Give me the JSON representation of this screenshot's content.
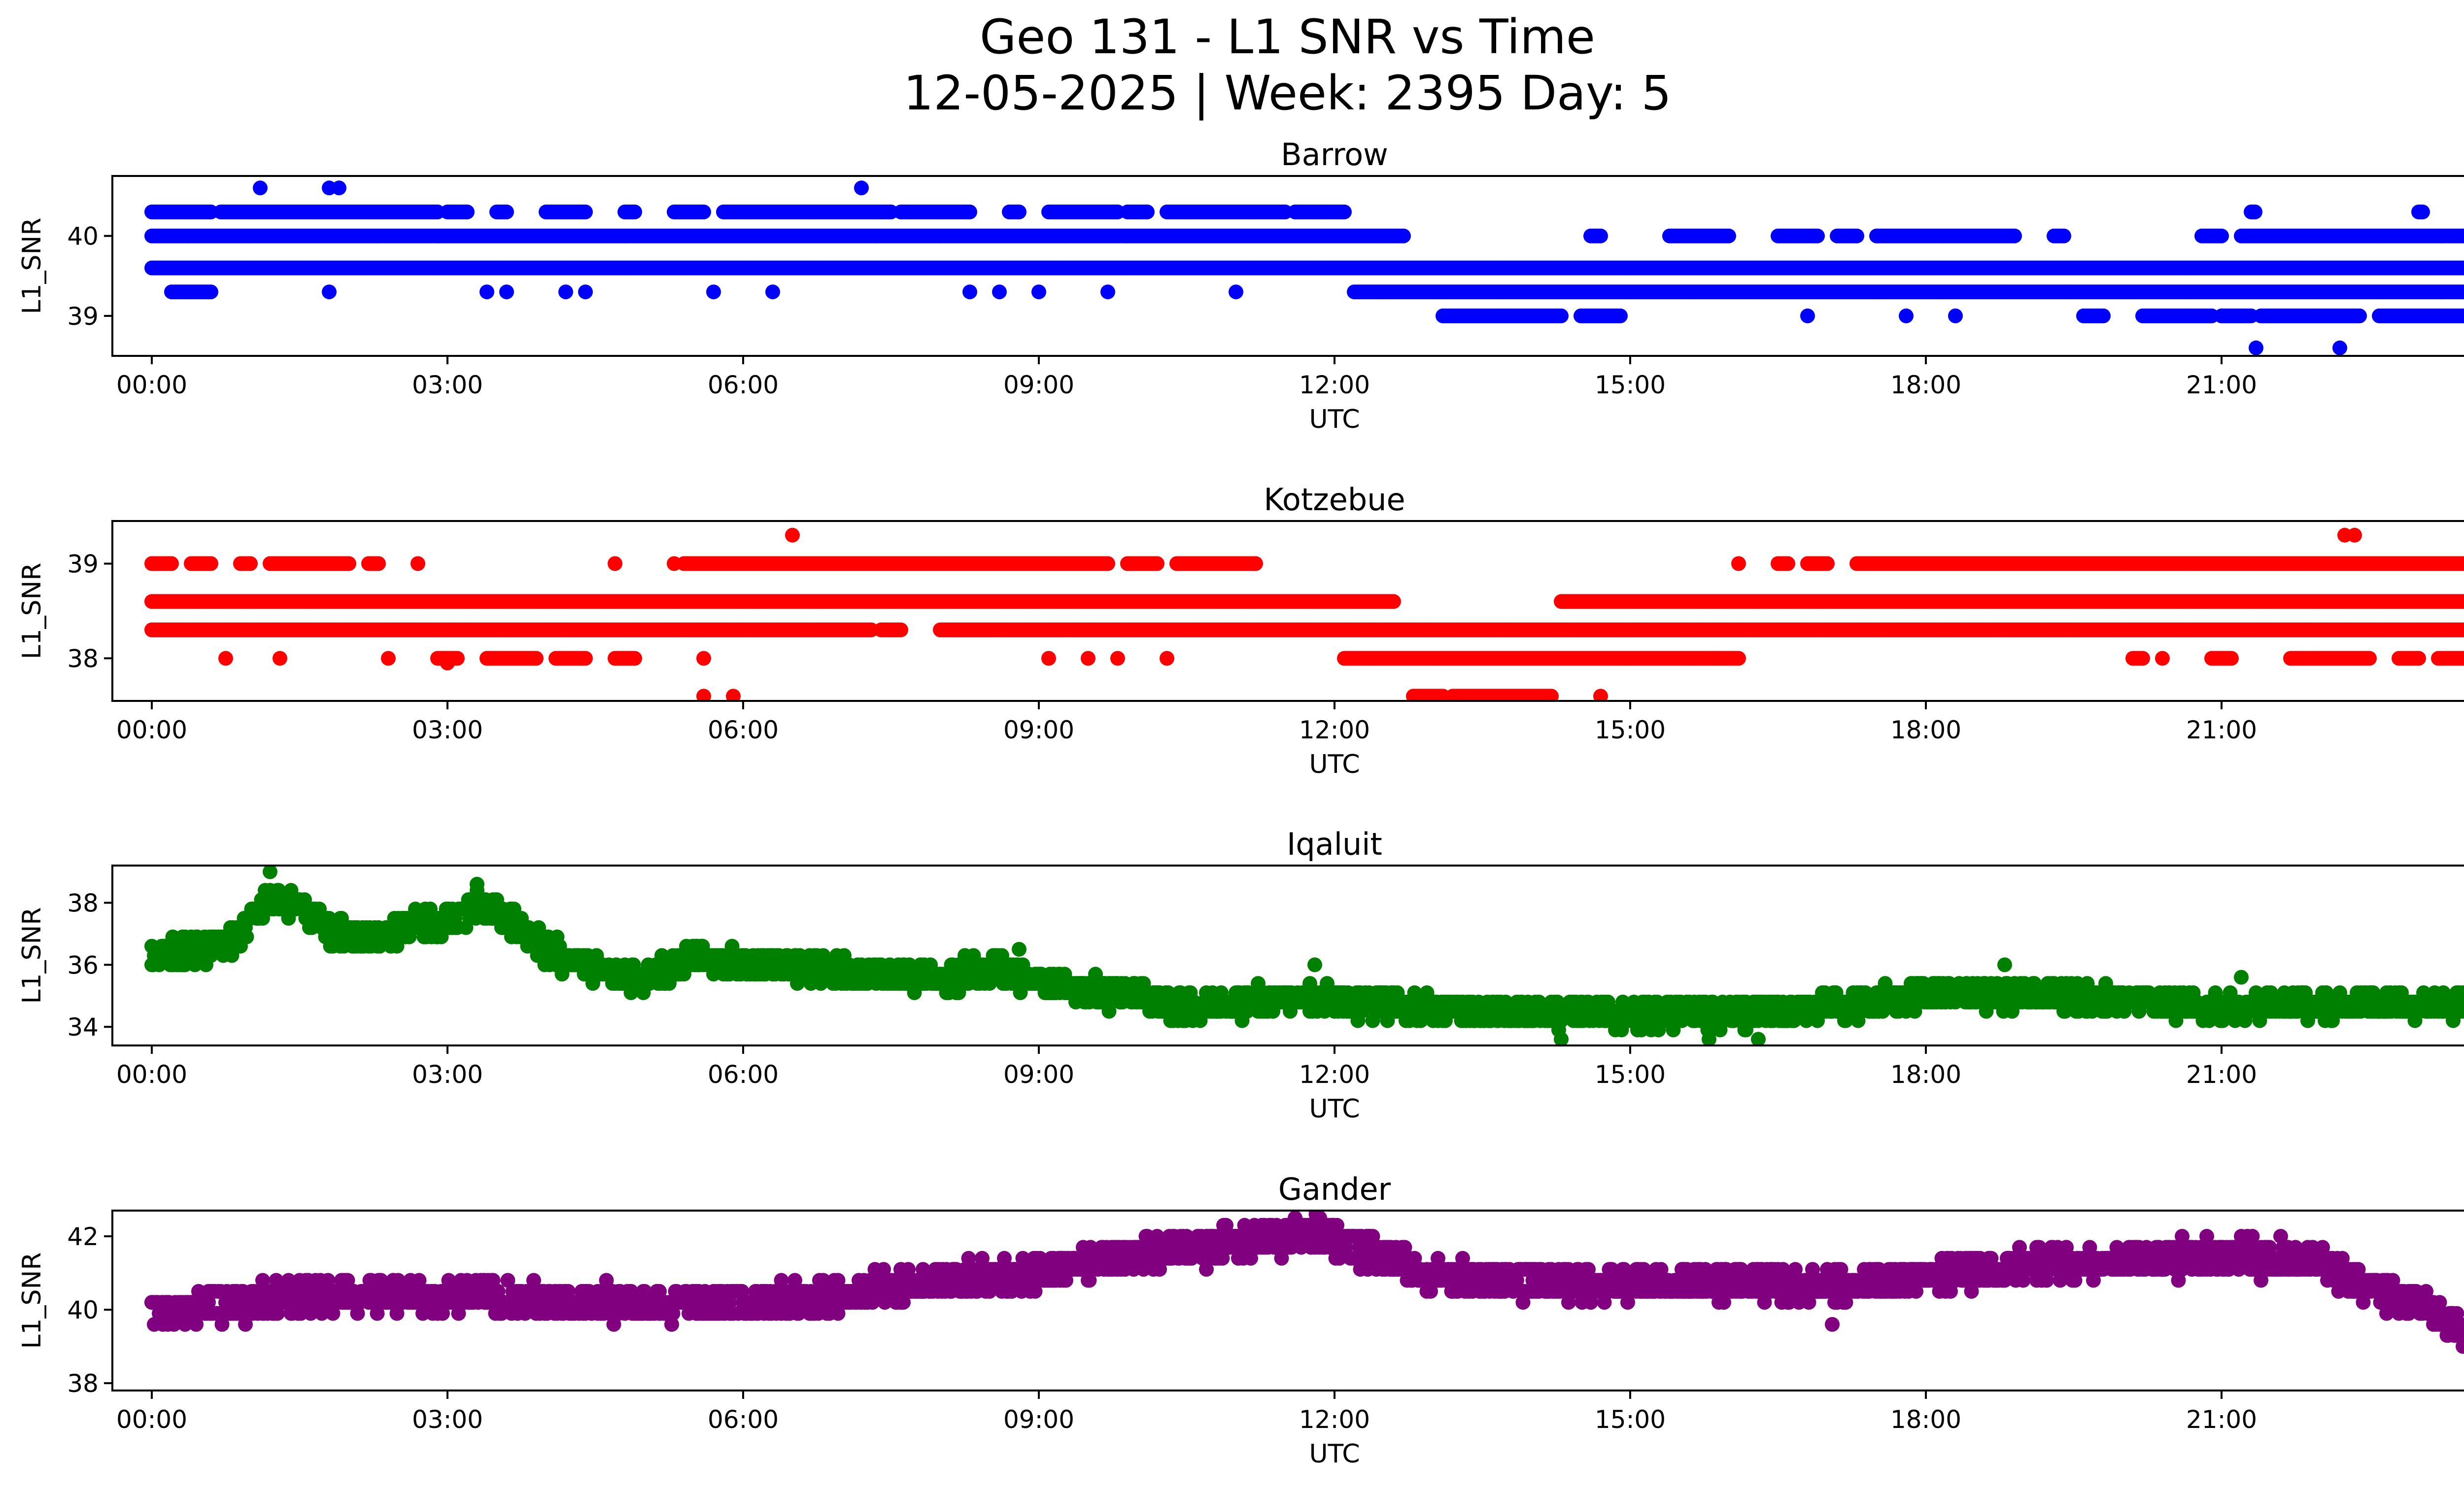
{
  "figure": {
    "title_line1": "Geo 131 - L1 SNR vs Time",
    "title_line2": "12-05-2025 | Week: 2395 Day: 5"
  },
  "chart_data": [
    {
      "type": "scatter",
      "title": "Barrow",
      "xlabel": "UTC",
      "ylabel": "L1_SNR",
      "color": "#0000ff",
      "xlim_hours": [
        -0.4,
        24.4
      ],
      "ylim": [
        38.5,
        40.75
      ],
      "xticks": [
        "00:00",
        "03:00",
        "06:00",
        "09:00",
        "12:00",
        "15:00",
        "18:00",
        "21:00",
        "00:00"
      ],
      "yticks": [
        39,
        40
      ],
      "mode": "levels",
      "levels": [
        {
          "y": 39.6,
          "spans": [
            [
              0,
              24
            ]
          ],
          "step": 0.02
        },
        {
          "y": 40.0,
          "spans": [
            [
              0,
              12.7
            ],
            [
              14.6,
              14.7
            ],
            [
              15.4,
              16.0
            ],
            [
              16.5,
              16.9
            ],
            [
              17.1,
              17.3
            ],
            [
              17.5,
              18.9
            ],
            [
              19.3,
              19.4
            ],
            [
              20.8,
              21.0
            ],
            [
              21.2,
              24
            ]
          ],
          "step": 0.02
        },
        {
          "y": 40.3,
          "spans": [
            [
              0,
              0.6
            ],
            [
              0.7,
              2.9
            ],
            [
              3.0,
              3.2
            ],
            [
              3.5,
              3.6
            ],
            [
              4.0,
              4.4
            ],
            [
              4.8,
              4.9
            ],
            [
              5.3,
              5.6
            ],
            [
              5.8,
              7.5
            ],
            [
              7.6,
              8.3
            ],
            [
              8.7,
              8.8
            ],
            [
              9.1,
              9.8
            ],
            [
              9.9,
              10.1
            ],
            [
              10.3,
              11.5
            ],
            [
              11.6,
              11.9
            ],
            [
              11.9,
              12.1
            ],
            [
              21.3,
              21.35
            ],
            [
              23.0,
              23.05
            ],
            [
              23.7,
              23.75
            ]
          ],
          "step": 0.02
        },
        {
          "y": 39.3,
          "spans": [
            [
              0.2,
              0.6
            ],
            [
              12.2,
              24.0
            ]
          ],
          "step": 0.02
        },
        {
          "y": 39.0,
          "spans": [
            [
              13.1,
              14.3
            ],
            [
              14.5,
              14.9
            ],
            [
              19.6,
              19.8
            ],
            [
              20.2,
              20.9
            ],
            [
              21.0,
              21.3
            ],
            [
              21.4,
              22.4
            ],
            [
              22.6,
              23.8
            ]
          ],
          "step": 0.02
        }
      ],
      "scatter_points": [
        [
          1.1,
          40.6
        ],
        [
          1.8,
          40.6
        ],
        [
          1.9,
          40.6
        ],
        [
          7.2,
          40.6
        ],
        [
          21.35,
          38.6
        ],
        [
          22.2,
          38.6
        ],
        [
          1.8,
          39.3
        ],
        [
          3.4,
          39.3
        ],
        [
          3.6,
          39.3
        ],
        [
          4.2,
          39.3
        ],
        [
          4.4,
          39.3
        ],
        [
          5.7,
          39.3
        ],
        [
          6.3,
          39.3
        ],
        [
          8.3,
          39.3
        ],
        [
          8.6,
          39.3
        ],
        [
          9.0,
          39.3
        ],
        [
          9.7,
          39.3
        ],
        [
          11.0,
          39.3
        ],
        [
          16.8,
          39.0
        ],
        [
          17.8,
          39.0
        ],
        [
          18.3,
          39.0
        ]
      ]
    },
    {
      "type": "scatter",
      "title": "Kotzebue",
      "xlabel": "UTC",
      "ylabel": "L1_SNR",
      "color": "#ff0000",
      "xlim_hours": [
        -0.4,
        24.4
      ],
      "ylim": [
        37.55,
        39.45
      ],
      "xticks": [
        "00:00",
        "03:00",
        "06:00",
        "09:00",
        "12:00",
        "15:00",
        "18:00",
        "21:00",
        "00:00"
      ],
      "yticks": [
        38,
        39
      ],
      "mode": "levels",
      "levels": [
        {
          "y": 38.6,
          "spans": [
            [
              0,
              12.6
            ],
            [
              14.3,
              24
            ]
          ],
          "step": 0.02
        },
        {
          "y": 38.3,
          "spans": [
            [
              0,
              7.3
            ],
            [
              7.4,
              7.6
            ],
            [
              8.0,
              24
            ]
          ],
          "step": 0.02
        },
        {
          "y": 39.0,
          "spans": [
            [
              0,
              0.2
            ],
            [
              0.4,
              0.6
            ],
            [
              0.9,
              1.0
            ],
            [
              1.2,
              2.0
            ],
            [
              2.2,
              2.3
            ],
            [
              5.4,
              9.7
            ],
            [
              9.9,
              10.2
            ],
            [
              10.4,
              11.2
            ],
            [
              16.5,
              16.6
            ],
            [
              16.8,
              17.0
            ],
            [
              17.3,
              24
            ]
          ],
          "step": 0.02
        },
        {
          "y": 38.0,
          "spans": [
            [
              2.9,
              3.1
            ],
            [
              3.4,
              3.9
            ],
            [
              4.1,
              4.4
            ],
            [
              4.7,
              4.9
            ],
            [
              12.1,
              15.9
            ],
            [
              15.9,
              16.1
            ],
            [
              20.1,
              20.2
            ],
            [
              20.9,
              21.1
            ],
            [
              21.7,
              22.5
            ],
            [
              22.8,
              23.0
            ],
            [
              23.2,
              23.6
            ]
          ],
          "step": 0.02
        },
        {
          "y": 37.6,
          "spans": [
            [
              12.8,
              13.1
            ],
            [
              13.2,
              14.2
            ]
          ],
          "step": 0.02
        }
      ],
      "scatter_points": [
        [
          0.75,
          38.0
        ],
        [
          1.3,
          38.0
        ],
        [
          2.4,
          38.0
        ],
        [
          5.6,
          38.0
        ],
        [
          9.1,
          38.0
        ],
        [
          9.5,
          38.0
        ],
        [
          9.8,
          38.0
        ],
        [
          10.3,
          38.0
        ],
        [
          3.0,
          37.95
        ],
        [
          23.8,
          38.0
        ],
        [
          20.4,
          38.0
        ],
        [
          5.6,
          37.6
        ],
        [
          5.9,
          37.6
        ],
        [
          14.7,
          37.6
        ],
        [
          6.5,
          39.3
        ],
        [
          22.25,
          39.3
        ],
        [
          22.35,
          39.3
        ],
        [
          2.7,
          39.0
        ],
        [
          4.7,
          39.0
        ],
        [
          5.3,
          39.0
        ],
        [
          16.1,
          39.0
        ]
      ]
    },
    {
      "type": "scatter",
      "title": "Iqaluit",
      "xlabel": "UTC",
      "ylabel": "L1_SNR",
      "color": "#008000",
      "xlim_hours": [
        -0.4,
        24.4
      ],
      "ylim": [
        33.4,
        39.2
      ],
      "xticks": [
        "00:00",
        "03:00",
        "06:00",
        "09:00",
        "12:00",
        "15:00",
        "18:00",
        "21:00",
        "00:00"
      ],
      "yticks": [
        34,
        36,
        38
      ],
      "mode": "trend",
      "step": 0.0125,
      "quantum": 0.3,
      "band": 0.35,
      "spread": 0.5,
      "trend": [
        [
          0,
          36.4
        ],
        [
          0.3,
          36.3
        ],
        [
          0.6,
          36.6
        ],
        [
          0.9,
          37.0
        ],
        [
          1.2,
          38.2
        ],
        [
          1.5,
          37.9
        ],
        [
          1.8,
          37.1
        ],
        [
          2.1,
          36.9
        ],
        [
          2.4,
          36.9
        ],
        [
          2.7,
          37.4
        ],
        [
          3.0,
          37.3
        ],
        [
          3.3,
          38.0
        ],
        [
          3.6,
          37.6
        ],
        [
          3.9,
          36.7
        ],
        [
          4.2,
          36.2
        ],
        [
          4.5,
          35.9
        ],
        [
          5.0,
          35.5
        ],
        [
          5.5,
          36.2
        ],
        [
          6.0,
          36.0
        ],
        [
          6.5,
          36.0
        ],
        [
          7.0,
          35.8
        ],
        [
          7.5,
          35.7
        ],
        [
          8.0,
          35.5
        ],
        [
          8.5,
          35.9
        ],
        [
          9.0,
          35.5
        ],
        [
          9.5,
          35.2
        ],
        [
          10.0,
          35.0
        ],
        [
          10.5,
          34.6
        ],
        [
          11.0,
          34.8
        ],
        [
          11.5,
          34.9
        ],
        [
          12.0,
          34.9
        ],
        [
          13.0,
          34.6
        ],
        [
          14.0,
          34.4
        ],
        [
          15.0,
          34.4
        ],
        [
          16.0,
          34.4
        ],
        [
          17.0,
          34.7
        ],
        [
          18.0,
          35.0
        ],
        [
          19.0,
          35.0
        ],
        [
          20.0,
          34.9
        ],
        [
          21.0,
          34.6
        ],
        [
          22.0,
          34.7
        ],
        [
          23.0,
          34.7
        ],
        [
          24.0,
          34.7
        ]
      ],
      "scatter_points": [
        [
          1.2,
          39.0
        ],
        [
          3.3,
          38.6
        ],
        [
          8.8,
          36.5
        ],
        [
          11.8,
          36.0
        ],
        [
          18.8,
          36.0
        ],
        [
          21.2,
          35.6
        ],
        [
          14.3,
          33.6
        ],
        [
          15.8,
          33.6
        ],
        [
          16.3,
          33.6
        ]
      ]
    },
    {
      "type": "scatter",
      "title": "Gander",
      "xlabel": "UTC",
      "ylabel": "L1_SNR",
      "color": "#800080",
      "xlim_hours": [
        -0.4,
        24.4
      ],
      "ylim": [
        37.8,
        42.7
      ],
      "xticks": [
        "00:00",
        "03:00",
        "06:00",
        "09:00",
        "12:00",
        "15:00",
        "18:00",
        "21:00",
        "00:00"
      ],
      "yticks": [
        38,
        40,
        42
      ],
      "mode": "trend",
      "step": 0.0125,
      "quantum": 0.3,
      "band": 0.35,
      "spread": 0.5,
      "trend": [
        [
          0,
          39.9
        ],
        [
          1.0,
          40.2
        ],
        [
          2.0,
          40.4
        ],
        [
          3.0,
          40.4
        ],
        [
          4.0,
          40.3
        ],
        [
          5.0,
          40.1
        ],
        [
          6.0,
          40.2
        ],
        [
          7.0,
          40.4
        ],
        [
          8.0,
          40.8
        ],
        [
          9.0,
          41.0
        ],
        [
          10.0,
          41.5
        ],
        [
          11.0,
          41.8
        ],
        [
          11.8,
          42.1
        ],
        [
          12.4,
          41.6
        ],
        [
          13.0,
          40.9
        ],
        [
          14.0,
          40.8
        ],
        [
          15.0,
          40.7
        ],
        [
          16.0,
          40.7
        ],
        [
          17.0,
          40.6
        ],
        [
          18.0,
          40.9
        ],
        [
          19.0,
          41.2
        ],
        [
          20.0,
          41.3
        ],
        [
          21.0,
          41.5
        ],
        [
          22.0,
          41.3
        ],
        [
          22.5,
          40.6
        ],
        [
          23.0,
          40.2
        ],
        [
          23.5,
          39.3
        ],
        [
          24.0,
          38.6
        ]
      ],
      "scatter_points": [
        [
          11.6,
          42.5
        ],
        [
          11.85,
          42.5
        ],
        [
          17.05,
          39.6
        ],
        [
          20.6,
          42.0
        ],
        [
          21.2,
          42.0
        ],
        [
          21.6,
          42.0
        ],
        [
          23.9,
          38.1
        ],
        [
          10.1,
          42.0
        ],
        [
          10.7,
          42.0
        ]
      ]
    }
  ]
}
